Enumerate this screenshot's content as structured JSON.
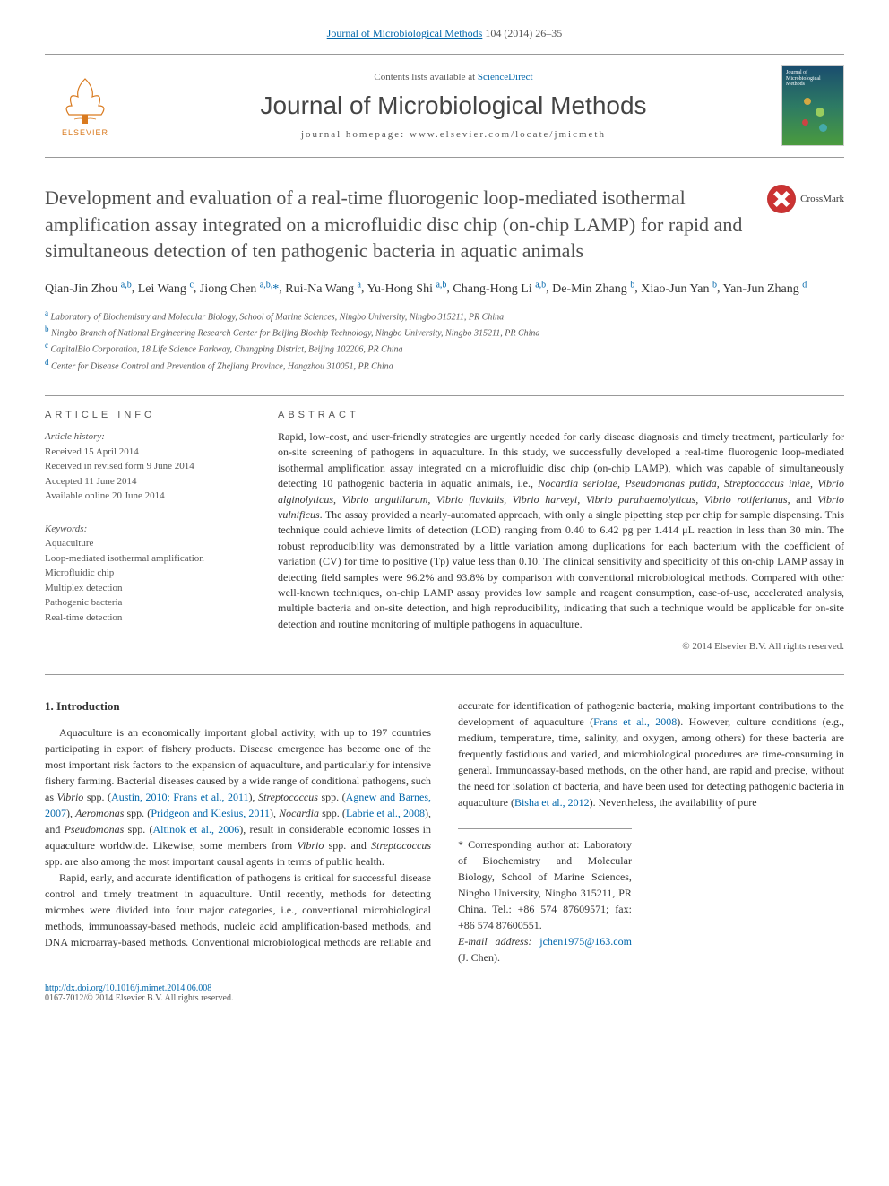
{
  "topLink": {
    "journal": "Journal of Microbiological Methods",
    "cite": "104 (2014) 26–35"
  },
  "header": {
    "contentsLine": "Contents lists available at",
    "sciDirect": "ScienceDirect",
    "journalTitle": "Journal of Microbiological Methods",
    "homepagePrefix": "journal homepage:",
    "homepage": "www.elsevier.com/locate/jmicmeth",
    "elsevier": "ELSEVIER",
    "coverText": "Journal of Microbiological Methods"
  },
  "crossmark": "CrossMark",
  "title": "Development and evaluation of a real-time fluorogenic loop-mediated isothermal amplification assay integrated on a microfluidic disc chip (on-chip LAMP) for rapid and simultaneous detection of ten pathogenic bacteria in aquatic animals",
  "authors": [
    {
      "name": "Qian-Jin Zhou",
      "aff": "a,b"
    },
    {
      "name": "Lei Wang",
      "aff": "c"
    },
    {
      "name": "Jiong Chen",
      "aff": "a,b,",
      "corr": true
    },
    {
      "name": "Rui-Na Wang",
      "aff": "a"
    },
    {
      "name": "Yu-Hong Shi",
      "aff": "a,b"
    },
    {
      "name": "Chang-Hong Li",
      "aff": "a,b"
    },
    {
      "name": "De-Min Zhang",
      "aff": "b"
    },
    {
      "name": "Xiao-Jun Yan",
      "aff": "b"
    },
    {
      "name": "Yan-Jun Zhang",
      "aff": "d"
    }
  ],
  "affiliations": [
    {
      "letter": "a",
      "text": "Laboratory of Biochemistry and Molecular Biology, School of Marine Sciences, Ningbo University, Ningbo 315211, PR China"
    },
    {
      "letter": "b",
      "text": "Ningbo Branch of National Engineering Research Center for Beijing Biochip Technology, Ningbo University, Ningbo 315211, PR China"
    },
    {
      "letter": "c",
      "text": "CapitalBio Corporation, 18 Life Science Parkway, Changping District, Beijing 102206, PR China"
    },
    {
      "letter": "d",
      "text": "Center for Disease Control and Prevention of Zhejiang Province, Hangzhou 310051, PR China"
    }
  ],
  "info": {
    "label": "ARTICLE INFO",
    "historyHdr": "Article history:",
    "received": "Received 15 April 2014",
    "revised": "Received in revised form 9 June 2014",
    "accepted": "Accepted 11 June 2014",
    "online": "Available online 20 June 2014",
    "keywordsHdr": "Keywords:",
    "keywords": [
      "Aquaculture",
      "Loop-mediated isothermal amplification",
      "Microfluidic chip",
      "Multiplex detection",
      "Pathogenic bacteria",
      "Real-time detection"
    ]
  },
  "abstract": {
    "label": "ABSTRACT",
    "p1a": "Rapid, low-cost, and user-friendly strategies are urgently needed for early disease diagnosis and timely treatment, particularly for on-site screening of pathogens in aquaculture. In this study, we successfully developed a real-time fluorogenic loop-mediated isothermal amplification assay integrated on a microfluidic disc chip (on-chip LAMP), which was capable of simultaneously detecting 10 pathogenic bacteria in aquatic animals, i.e., ",
    "species": "Nocardia seriolae, Pseudomonas putida, Streptococcus iniae, Vibrio alginolyticus, Vibrio anguillarum, Vibrio fluvialis, Vibrio harveyi, Vibrio parahaemolyticus, Vibrio rotiferianus",
    "and": ", and ",
    "lastSpecies": "Vibrio vulnificus",
    "p1b": ". The assay provided a nearly-automated approach, with only a single pipetting step per chip for sample dispensing. This technique could achieve limits of detection (LOD) ranging from 0.40 to 6.42 pg per 1.414 μL reaction in less than 30 min. The robust reproducibility was demonstrated by a little variation among duplications for each bacterium with the coefficient of variation (CV) for time to positive (Tp) value less than 0.10. The clinical sensitivity and specificity of this on-chip LAMP assay in detecting field samples were 96.2% and 93.8% by comparison with conventional microbiological methods. Compared with other well-known techniques, on-chip LAMP assay provides low sample and reagent consumption, ease-of-use, accelerated analysis, multiple bacteria and on-site detection, and high reproducibility, indicating that such a technique would be applicable for on-site detection and routine monitoring of multiple pathogens in aquaculture.",
    "copyright": "© 2014 Elsevier B.V. All rights reserved."
  },
  "intro": {
    "heading": "1. Introduction",
    "p1a": "Aquaculture is an economically important global activity, with up to 197 countries participating in export of fishery products. Disease emergence has become one of the most important risk factors to the expansion of aquaculture, and particularly for intensive fishery farming. Bacterial diseases caused by a wide range of conditional pathogens, such as ",
    "p1_vibrio": "Vibrio",
    "p1_spp1": " spp. (",
    "p1_ref1": "Austin, 2010; Frans et al., 2011",
    "p1_close1": "), ",
    "p1_strep": "Streptococcus",
    "p1_spp2": " spp. (",
    "p1_ref2": "Agnew and Barnes, 2007",
    "p1_close2": "), ",
    "p1_aero": "Aeromonas",
    "p1_spp3": " spp. (",
    "p1_ref3": "Pridgeon and Klesius, 2011",
    "p1_close3": "), ",
    "p1_noc": "Nocardia",
    "p1_spp4": " spp. (",
    "p1_ref4": "Labrie et al., 2008",
    "p1_close4": "), and ",
    "p1_pseudo": "Pseudomonas",
    "p1_spp5": " spp. (",
    "p1_ref5": "Altinok et al., 2006",
    "p1_close5": "), result in considerable economic losses in aquaculture worldwide. Likewise, some members from ",
    "p1_vibrio2": "Vibrio",
    "p1_tail": " spp. and ",
    "p1_strep2": "Streptococcus",
    "p1_tail2": " spp. are also among the most important causal agents in terms of public health.",
    "p2a": "Rapid, early, and accurate identification of pathogens is critical for successful disease control and timely treatment in aquaculture. Until recently, methods for detecting microbes were divided into four major categories, i.e., conventional microbiological methods, immunoassay-based methods, nucleic acid amplification-based methods, and DNA microarray-based methods. Conventional microbiological methods are reliable and accurate for identification of pathogenic bacteria, making important contributions to the development of aquaculture (",
    "p2_ref1": "Frans et al., 2008",
    "p2_close1": "). However, culture conditions (e.g., medium, temperature, time, salinity, and oxygen, among others) for these bacteria are frequently fastidious and varied, and microbiological procedures are time-consuming in general. Immunoassay-based methods, on the other hand, are rapid and precise, without the need for isolation of bacteria, and have been used for detecting pathogenic bacteria in aquaculture (",
    "p2_ref2": "Bisha et al., 2012",
    "p2_close2": "). Nevertheless, the availability of pure"
  },
  "footer": {
    "corrStar": "*",
    "corresponding": "Corresponding author at: Laboratory of Biochemistry and Molecular Biology, School of Marine Sciences, Ningbo University, Ningbo 315211, PR China. Tel.: +86 574 87609571; fax: +86 574 87600551.",
    "emailLabel": "E-mail address:",
    "email": "jchen1975@163.com",
    "emailName": "(J. Chen).",
    "doi": "http://dx.doi.org/10.1016/j.mimet.2014.06.008",
    "issn": "0167-7012/© 2014 Elsevier B.V. All rights reserved."
  },
  "colors": {
    "link": "#0066aa",
    "text": "#333333",
    "muted": "#555555",
    "rule": "#999999"
  }
}
